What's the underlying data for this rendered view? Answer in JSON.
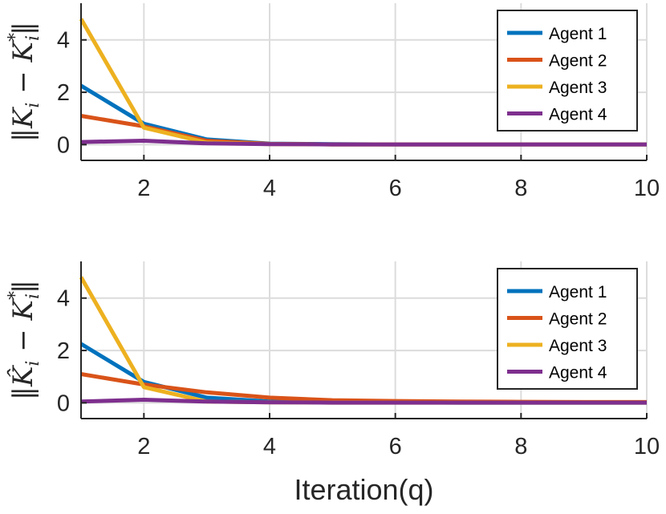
{
  "chart_data": [
    {
      "type": "line",
      "ylabel": "‖K_i − K_i*‖",
      "ylabel_parts": {
        "left": "‖",
        "main": "K",
        "sub": "i",
        "minus": " − ",
        "main2": "K",
        "sup": "*",
        "sub2": "i",
        "right": "‖"
      },
      "xlabel": "",
      "x": [
        1,
        2,
        3,
        4,
        5,
        6,
        7,
        8,
        9,
        10
      ],
      "xlim": [
        1,
        10
      ],
      "ylim": [
        -0.6,
        5.4
      ],
      "xticks": [
        2,
        4,
        6,
        8,
        10
      ],
      "yticks": [
        0,
        2,
        4
      ],
      "grid": true,
      "legend_position": "top-right",
      "series": [
        {
          "name": "Agent 1",
          "color": "#0072BD",
          "values": [
            2.25,
            0.8,
            0.2,
            0.04,
            0.02,
            0.01,
            0.01,
            0.01,
            0.01,
            0.01
          ]
        },
        {
          "name": "Agent 2",
          "color": "#D95319",
          "values": [
            1.1,
            0.7,
            0.15,
            0.03,
            0.01,
            0.01,
            0.01,
            0.01,
            0.01,
            0.01
          ]
        },
        {
          "name": "Agent 3",
          "color": "#EDB120",
          "values": [
            4.8,
            0.65,
            0.08,
            0.02,
            0.01,
            0.01,
            0.01,
            0.01,
            0.01,
            0.01
          ]
        },
        {
          "name": "Agent 4",
          "color": "#7E2F8E",
          "values": [
            0.1,
            0.15,
            0.05,
            0.02,
            0.01,
            0.01,
            0.01,
            0.01,
            0.01,
            0.01
          ]
        }
      ]
    },
    {
      "type": "line",
      "ylabel": "‖K̂_i − K_i*‖",
      "ylabel_parts": {
        "left": "‖",
        "main": "K̂",
        "sub": "i",
        "minus": " − ",
        "main2": "K",
        "sup": "*",
        "sub2": "i",
        "right": "‖"
      },
      "xlabel": "Iteration(q)",
      "x": [
        1,
        2,
        3,
        4,
        5,
        6,
        7,
        8,
        9,
        10
      ],
      "xlim": [
        1,
        10
      ],
      "ylim": [
        -0.6,
        5.4
      ],
      "xticks": [
        2,
        4,
        6,
        8,
        10
      ],
      "yticks": [
        0,
        2,
        4
      ],
      "grid": true,
      "legend_position": "top-right",
      "series": [
        {
          "name": "Agent 1",
          "color": "#0072BD",
          "values": [
            2.25,
            0.8,
            0.2,
            0.05,
            0.02,
            0.02,
            0.01,
            0.01,
            0.01,
            0.01
          ]
        },
        {
          "name": "Agent 2",
          "color": "#D95319",
          "values": [
            1.1,
            0.7,
            0.4,
            0.2,
            0.1,
            0.07,
            0.05,
            0.04,
            0.03,
            0.03
          ]
        },
        {
          "name": "Agent 3",
          "color": "#EDB120",
          "values": [
            4.8,
            0.6,
            0.05,
            0.02,
            0.01,
            0.01,
            0.01,
            0.01,
            0.01,
            0.01
          ]
        },
        {
          "name": "Agent 4",
          "color": "#7E2F8E",
          "values": [
            0.05,
            0.12,
            0.05,
            0.02,
            0.01,
            0.01,
            0.01,
            0.01,
            0.01,
            0.01
          ]
        }
      ]
    }
  ]
}
